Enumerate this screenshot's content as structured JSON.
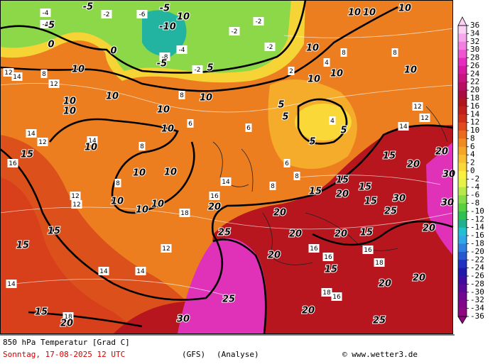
{
  "footer": {
    "title": "850 hPa Temperatur [Grad C]",
    "date": "Sonntag, 17-08-2025  12 UTC",
    "model": "(GFS)",
    "mode": "(Analyse)",
    "credit": "© www.wetter3.de"
  },
  "map": {
    "bold_labels": [
      -5,
      -5,
      0,
      -10,
      -5,
      10,
      -5,
      0,
      5,
      10,
      10,
      10,
      10,
      10,
      10,
      10,
      10,
      10,
      10,
      10,
      10,
      10,
      10,
      10,
      10,
      10,
      10,
      10,
      10,
      5,
      5,
      5,
      5,
      15,
      15,
      15,
      15,
      15,
      15,
      15,
      15,
      15,
      15,
      15,
      20,
      20,
      20,
      20,
      20,
      20,
      20,
      20,
      20,
      20,
      20,
      20,
      20,
      25,
      25,
      25,
      25,
      30,
      30,
      30,
      30
    ],
    "box_labels": [
      -4,
      -2,
      -4,
      -6,
      -2,
      -2,
      -4,
      -8,
      -2,
      -2,
      2,
      4,
      8,
      8,
      8,
      8,
      12,
      14,
      12,
      14,
      12,
      14,
      16,
      8,
      8,
      6,
      6,
      4,
      12,
      12,
      14,
      16,
      18,
      14,
      14,
      12,
      14,
      18,
      16,
      16,
      18,
      16,
      18,
      16,
      8,
      6,
      8,
      12,
      12,
      14
    ]
  },
  "colorbar": {
    "ticks": [
      36,
      34,
      32,
      30,
      28,
      26,
      24,
      22,
      20,
      18,
      16,
      14,
      12,
      10,
      8,
      6,
      4,
      2,
      0,
      -2,
      -4,
      -6,
      -8,
      -10,
      -12,
      -14,
      -16,
      -18,
      -20,
      -22,
      -24,
      -26,
      -28,
      -30,
      -32,
      -34,
      -36
    ],
    "colors": [
      "#fbd2f4",
      "#f7a8ec",
      "#f27ee0",
      "#ee55d2",
      "#e62cbe",
      "#d81aa0",
      "#c8147e",
      "#b81060",
      "#a80c40",
      "#b0151e",
      "#c0201a",
      "#d0301a",
      "#e04a1c",
      "#ea6a1e",
      "#f08a22",
      "#f4a628",
      "#f8c030",
      "#fad838",
      "#fbf040",
      "#e6f24a",
      "#b8e84a",
      "#88dc48",
      "#58d040",
      "#30c050",
      "#20b090",
      "#20c0d0",
      "#30a8e8",
      "#3080e0",
      "#2858d0",
      "#2030c0",
      "#2018a8",
      "#400ca0",
      "#5a0a98",
      "#700890",
      "#800888",
      "#900880"
    ]
  }
}
